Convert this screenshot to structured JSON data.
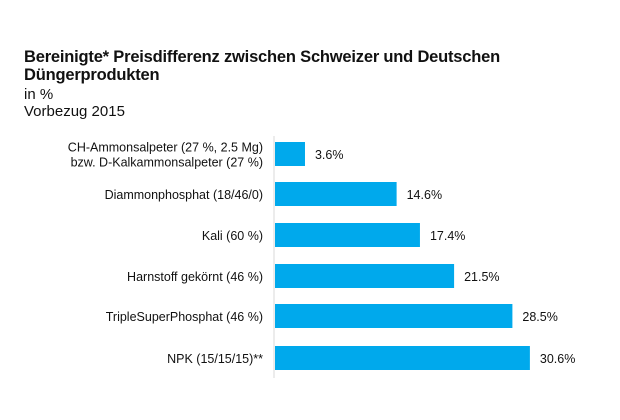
{
  "chart_data": {
    "type": "bar",
    "orientation": "horizontal",
    "title": "Bereinigte* Preisdifferenz zwischen Schweizer und Deutschen Düngerprodukten",
    "subtitle": [
      "in %",
      "Vorbezug 2015"
    ],
    "xlabel": "",
    "ylabel": "",
    "xlim": [
      0,
      35
    ],
    "grid": false,
    "categories": [
      [
        "CH-Ammonsalpeter (27 %, 2.5 Mg)",
        "bzw. D-Kalkammonsalpeter (27 %)"
      ],
      [
        "Diammonphosphat (18/46/0)"
      ],
      [
        "Kali (60 %)"
      ],
      [
        "Harnstoff gekörnt (46 %)"
      ],
      [
        "TripleSuperPhosphat (46 %)"
      ],
      [
        "NPK (15/15/15)**"
      ]
    ],
    "values": [
      3.6,
      14.6,
      17.4,
      21.5,
      28.5,
      30.6
    ],
    "value_labels": [
      "3.6%",
      "14.6%",
      "17.4%",
      "21.5%",
      "28.5%",
      "30.6%"
    ],
    "bar_color": "#00A9EC"
  }
}
